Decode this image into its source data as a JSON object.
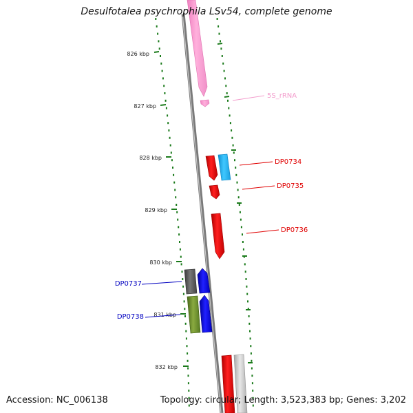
{
  "title": "Desulfotalea psychrophila LSv54, complete genome",
  "footer": {
    "accession": "Accession: NC_006138",
    "topology": "Topology: circular; Length: 3,523,383 bp; Genes: 3,202"
  },
  "ticks": [
    {
      "label": "826 kbp"
    },
    {
      "label": "827 kbp"
    },
    {
      "label": "828 kbp"
    },
    {
      "label": "829 kbp"
    },
    {
      "label": "830 kbp"
    },
    {
      "label": "831 kbp"
    },
    {
      "label": "832 kbp"
    }
  ],
  "features": [
    {
      "name": "5S_rRNA",
      "color": "#f06fb5"
    },
    {
      "name": "DP0734",
      "color": "#e00000"
    },
    {
      "name": "DP0735",
      "color": "#e00000"
    },
    {
      "name": "DP0736",
      "color": "#e00000"
    },
    {
      "name": "DP0737",
      "color": "#0000c0"
    },
    {
      "name": "DP0738",
      "color": "#0000c0"
    }
  ],
  "colors": {
    "backbone": "#8a8a8a",
    "tick_dots": "#1a7a1a",
    "rrna": "#f7a8d4",
    "gene_red": "#ee0000",
    "gene_cyan": "#2ab8f0",
    "gene_blue": "#0000ee",
    "gene_dark_gray": "#555555",
    "gene_olive": "#6a8a2a",
    "gene_light_gray": "#c8c8c8"
  }
}
